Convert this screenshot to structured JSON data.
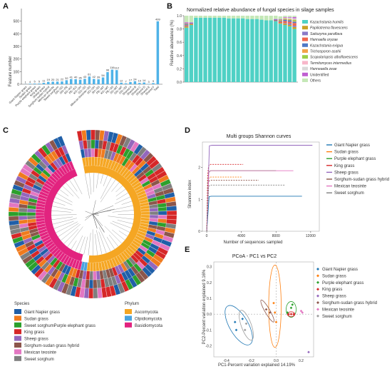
{
  "panel_labels": {
    "A": "A",
    "B": "B",
    "C": "C",
    "D": "D",
    "E": "E"
  },
  "colors": {
    "bar_A": "#4fb3e8",
    "species": [
      "#1f5fa8",
      "#f07b1e",
      "#2ca02c",
      "#d62728",
      "#9467bd",
      "#8c564b",
      "#e377c2",
      "#7f7f7f"
    ],
    "phylum": [
      "#f5a623",
      "#4aa3df",
      "#e2237f"
    ]
  },
  "chart_data": [
    {
      "type": "bar",
      "panel": "A",
      "ylabel": "Feature number",
      "ylim": [
        0,
        600
      ],
      "yticks": [
        0,
        100,
        200,
        300,
        400,
        500
      ],
      "categories": [
        "Giant Napier grass",
        "Sudan grass",
        "Purple elephant grass",
        "King grass",
        "Sheep grass",
        "Sorghum-sudan hybrid",
        "Mexican teosinte",
        "Sweet sorghum",
        "GN∩SG",
        "GN∩PE",
        "SG∩KG",
        "PE∩KG",
        "KG∩SH",
        "SG∩SS",
        "Mexican teosinte∩SS",
        "SG∩SH",
        "SH∩SS",
        "PE∩MT",
        "KG∩MT",
        "PE∩SS",
        "SS∩MT",
        "GN∩MT",
        "GN∩SS",
        "Shared A",
        "Shared B",
        "Shared C",
        "Shared D",
        "Shared E",
        "Shared F",
        "Total"
      ],
      "values": [
        1,
        4,
        5,
        5,
        11,
        19,
        20,
        21,
        22,
        32,
        41,
        40,
        35,
        43,
        61,
        42,
        39,
        54,
        96,
        116,
        112,
        12,
        7,
        17,
        24,
        10,
        14,
        3,
        9,
        499
      ],
      "value_labels": [
        "1",
        "4",
        "5",
        "5",
        "11",
        "19",
        "20",
        "21",
        "22",
        "32",
        "41",
        "40",
        "35",
        "43",
        "61",
        "42",
        "39",
        "54",
        "96",
        "116",
        "112",
        "12",
        "7",
        "17",
        "24",
        "10",
        "14",
        "3",
        "9",
        "499"
      ]
    },
    {
      "type": "bar",
      "stacked": true,
      "panel": "B",
      "title": "Normalized relative abundance of fungal species in silage samples",
      "ylabel": "Relative abundance (%)",
      "ylim": [
        0,
        1.0
      ],
      "yticks": [
        "0.0",
        "0.2",
        "0.4",
        "0.6",
        "0.8",
        "1.0"
      ],
      "sample_count": 24,
      "series": [
        {
          "name": "Kazachstania humilis",
          "color": "#4fd1c5",
          "values": [
            0.82,
            0.86,
            0.97,
            0.97,
            0.97,
            0.97,
            0.97,
            0.97,
            0.97,
            0.96,
            0.96,
            0.96,
            0.96,
            0.95,
            0.95,
            0.95,
            0.94,
            0.93,
            0.93,
            0.92,
            0.88,
            0.86,
            0.84,
            0.8
          ]
        },
        {
          "name": "Papiliotrema flavescens",
          "color": "#c9a227",
          "values": [
            0.02,
            0.01,
            0,
            0,
            0,
            0,
            0,
            0,
            0,
            0,
            0,
            0,
            0,
            0,
            0,
            0,
            0,
            0,
            0,
            0,
            0.01,
            0.02,
            0.02,
            0.03
          ]
        },
        {
          "name": "Saitozyma paraflava",
          "color": "#8a7ac8",
          "values": [
            0.01,
            0,
            0,
            0,
            0,
            0,
            0,
            0,
            0,
            0,
            0,
            0,
            0,
            0,
            0,
            0,
            0,
            0,
            0,
            0,
            0,
            0.01,
            0.02,
            0.02
          ]
        },
        {
          "name": "Hannaella oryzae",
          "color": "#f0654e",
          "values": [
            0.01,
            0.01,
            0,
            0,
            0,
            0,
            0,
            0,
            0,
            0,
            0,
            0,
            0,
            0,
            0,
            0,
            0,
            0,
            0,
            0.01,
            0.02,
            0.03,
            0.03,
            0.04
          ]
        },
        {
          "name": "Kazachstania exigua",
          "color": "#4e79c7",
          "values": [
            0.01,
            0.01,
            0,
            0,
            0,
            0,
            0,
            0,
            0,
            0,
            0,
            0,
            0,
            0,
            0,
            0,
            0,
            0,
            0,
            0.01,
            0.01,
            0.02,
            0.02,
            0.02
          ]
        },
        {
          "name": "Trichosporon asahii",
          "color": "#f2a44a",
          "values": [
            0,
            0,
            0,
            0,
            0,
            0,
            0,
            0,
            0,
            0,
            0,
            0,
            0,
            0,
            0,
            0,
            0,
            0,
            0,
            0,
            0.01,
            0.01,
            0.01,
            0.01
          ]
        },
        {
          "name": "Scopulariopsis alboflavescens",
          "color": "#9bcf4a",
          "values": [
            0.01,
            0,
            0,
            0,
            0,
            0,
            0,
            0,
            0,
            0,
            0,
            0,
            0,
            0,
            0,
            0,
            0,
            0,
            0,
            0,
            0.01,
            0.01,
            0.01,
            0.02
          ]
        },
        {
          "name": "Termitomyces intermedius",
          "color": "#f7b6c9",
          "values": [
            0,
            0,
            0,
            0,
            0,
            0,
            0,
            0,
            0,
            0,
            0,
            0,
            0,
            0,
            0,
            0,
            0,
            0,
            0,
            0,
            0,
            0.01,
            0.01,
            0.01
          ]
        },
        {
          "name": "Hanneaella zeae",
          "color": "#d9d9d9",
          "values": [
            0,
            0,
            0,
            0,
            0,
            0,
            0,
            0,
            0,
            0,
            0,
            0,
            0,
            0,
            0,
            0,
            0,
            0,
            0,
            0,
            0,
            0,
            0.01,
            0.01
          ]
        },
        {
          "name": "Unidentified",
          "color": "#c05fd1",
          "values": [
            0.02,
            0.01,
            0,
            0,
            0,
            0,
            0,
            0,
            0,
            0,
            0,
            0,
            0,
            0,
            0,
            0,
            0,
            0,
            0,
            0.01,
            0.01,
            0.01,
            0.01,
            0.02
          ]
        },
        {
          "name": "Others",
          "color": "#c5e8b7",
          "values": [
            0.1,
            0.1,
            0.03,
            0.03,
            0.03,
            0.03,
            0.03,
            0.03,
            0.03,
            0.04,
            0.04,
            0.04,
            0.04,
            0.05,
            0.05,
            0.05,
            0.06,
            0.07,
            0.07,
            0.05,
            0.04,
            0.02,
            0.02,
            0.02
          ]
        }
      ]
    },
    {
      "type": "line",
      "panel": "D",
      "title": "Multi groups Shannon curves",
      "xlabel": "Number of sequences sampled",
      "ylabel": "Shannon index",
      "xlim": [
        -500,
        13000
      ],
      "ylim": [
        0,
        2.8
      ],
      "xticks": [
        0,
        4000,
        8000,
        12000
      ],
      "yticks": [
        0,
        1,
        2
      ],
      "series": [
        {
          "name": "Giant Napier grass",
          "color": "#1f77b4",
          "plateau": 1.1,
          "xmax": 11000
        },
        {
          "name": "Sudan grass",
          "color": "#ff7f0e",
          "plateau": 1.7,
          "xmax": 4000
        },
        {
          "name": "Purple elephant grass",
          "color": "#2ca02c",
          "plateau": 1.9,
          "xmax": 8000
        },
        {
          "name": "King grass",
          "color": "#d62728",
          "plateau": 2.1,
          "xmax": 4200
        },
        {
          "name": "Sheep grass",
          "color": "#9467bd",
          "plateau": 2.7,
          "xmax": 12200
        },
        {
          "name": "Sorghum-sudan grass hybrid",
          "color": "#8c564b",
          "plateau": 1.6,
          "xmax": 6000
        },
        {
          "name": "Mexican teosinte",
          "color": "#e377c2",
          "plateau": 1.9,
          "xmax": 10000
        },
        {
          "name": "Sweet sorghum",
          "color": "#7f7f7f",
          "plateau": 1.45,
          "xmax": 9000
        }
      ]
    },
    {
      "type": "scatter",
      "panel": "E",
      "title": "PCoA - PC1 vs PC2",
      "xlabel": "PC1-Percent variation explained 14.19%",
      "ylabel": "PC2-Percent variation explained 9.16%",
      "xlim": [
        -0.5,
        0.3
      ],
      "ylim": [
        -0.27,
        0.33
      ],
      "xticks": [
        -0.4,
        -0.2,
        0.0,
        0.2
      ],
      "yticks": [
        -0.2,
        -0.1,
        0.0,
        0.1,
        0.2,
        0.3
      ],
      "groups": [
        {
          "name": "Giant Napier grass",
          "color": "#1f77b4",
          "marker": "diamond",
          "points": [
            [
              -0.33,
              -0.05
            ],
            [
              -0.32,
              -0.1
            ],
            [
              -0.27,
              -0.03
            ]
          ]
        },
        {
          "name": "Sudan grass",
          "color": "#ff7f0e",
          "marker": "diamond",
          "points": [
            [
              -0.02,
              0.07
            ],
            [
              0.0,
              -0.05
            ],
            [
              -0.01,
              0.01
            ]
          ]
        },
        {
          "name": "Purple elephant grass",
          "color": "#2ca02c",
          "marker": "diamond",
          "points": [
            [
              0.12,
              0.04
            ],
            [
              0.09,
              0.01
            ],
            [
              0.13,
              0.06
            ]
          ]
        },
        {
          "name": "King grass",
          "color": "#d62728",
          "marker": "diamond",
          "points": [
            [
              0.1,
              0.0
            ],
            [
              0.12,
              0.0
            ],
            [
              0.14,
              0.0
            ]
          ]
        },
        {
          "name": "Sheep grass",
          "color": "#9467bd",
          "marker": "diamond",
          "points": [
            [
              0.26,
              -0.24
            ]
          ]
        },
        {
          "name": "Sorghum-sudan grass hybrid",
          "color": "#8c564b",
          "marker": "diamond",
          "points": [
            [
              -0.08,
              0.03
            ],
            [
              -0.05,
              0.01
            ]
          ]
        },
        {
          "name": "Mexican teosinte",
          "color": "#e377c2",
          "marker": "diamond",
          "points": [
            [
              0.2,
              0.02
            ],
            [
              0.21,
              0.01
            ]
          ]
        },
        {
          "name": "Sweet sorghum",
          "color": "#9e9e9e",
          "marker": "diamond",
          "points": [
            [
              -0.24,
              -0.06
            ],
            [
              -0.25,
              -0.1
            ]
          ]
        }
      ]
    }
  ],
  "tree_legend": {
    "species_title": "Species",
    "species": [
      "Giant Napier grass",
      "Sudan grass",
      "Sweet sorghumPurple elephant grass",
      "King grass",
      "Sheep grass",
      "Sorghum-sudan grass hybrid",
      "Mexican teosinte",
      "Sweet sorghum"
    ],
    "phylum_title": "Phylum",
    "phylum": [
      "Ascomycota",
      "Olpidiomycota",
      "Basidiomycota"
    ]
  }
}
